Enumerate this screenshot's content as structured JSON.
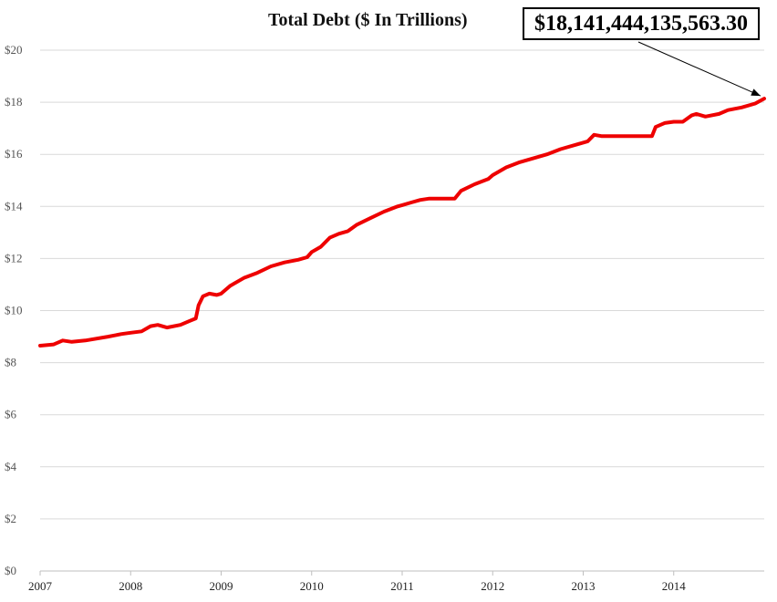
{
  "chart_data": {
    "type": "line",
    "title": "Total Debt ($ In Trillions)",
    "annotation": "$18,141,444,135,563.30",
    "xlabel": "",
    "ylabel": "",
    "xlim": [
      2007,
      2015
    ],
    "ylim": [
      0,
      20
    ],
    "y_ticks": [
      "$0",
      "$2",
      "$4",
      "$6",
      "$8",
      "$10",
      "$12",
      "$14",
      "$16",
      "$18",
      "$20"
    ],
    "y_tick_values": [
      0,
      2,
      4,
      6,
      8,
      10,
      12,
      14,
      16,
      18,
      20
    ],
    "x_ticks": [
      "2007",
      "2008",
      "2009",
      "2010",
      "2011",
      "2012",
      "2013",
      "2014"
    ],
    "x_tick_values": [
      2007,
      2008,
      2009,
      2010,
      2011,
      2012,
      2013,
      2014
    ],
    "grid": true,
    "line_color": "#ee0000",
    "series": [
      {
        "x": [
          2007.0,
          2007.15,
          2007.25,
          2007.35,
          2007.5,
          2007.75,
          2007.9,
          2008.0,
          2008.12,
          2008.22,
          2008.3,
          2008.4,
          2008.55,
          2008.65,
          2008.72,
          2008.75,
          2008.8,
          2008.87,
          2008.95,
          2009.0,
          2009.1,
          2009.25,
          2009.4,
          2009.55,
          2009.7,
          2009.85,
          2009.95,
          2010.0,
          2010.1,
          2010.2,
          2010.3,
          2010.4,
          2010.5,
          2010.65,
          2010.8,
          2010.95,
          2011.0,
          2011.1,
          2011.2,
          2011.3,
          2011.42,
          2011.58,
          2011.65,
          2011.8,
          2011.95,
          2012.0,
          2012.15,
          2012.3,
          2012.5,
          2012.6,
          2012.75,
          2012.95,
          2013.05,
          2013.12,
          2013.2,
          2013.3,
          2013.5,
          2013.65,
          2013.76,
          2013.8,
          2013.9,
          2014.0,
          2014.1,
          2014.2,
          2014.25,
          2014.35,
          2014.5,
          2014.6,
          2014.75,
          2014.9,
          2015.0
        ],
        "y": [
          8.65,
          8.7,
          8.85,
          8.8,
          8.85,
          9.0,
          9.1,
          9.15,
          9.2,
          9.4,
          9.45,
          9.35,
          9.45,
          9.6,
          9.7,
          10.2,
          10.55,
          10.65,
          10.6,
          10.65,
          10.95,
          11.25,
          11.45,
          11.7,
          11.85,
          11.95,
          12.05,
          12.25,
          12.45,
          12.8,
          12.95,
          13.05,
          13.3,
          13.55,
          13.8,
          14.0,
          14.05,
          14.15,
          14.25,
          14.3,
          14.3,
          14.3,
          14.6,
          14.85,
          15.05,
          15.2,
          15.5,
          15.7,
          15.9,
          16.0,
          16.2,
          16.4,
          16.5,
          16.75,
          16.7,
          16.7,
          16.7,
          16.7,
          16.7,
          17.05,
          17.2,
          17.25,
          17.25,
          17.5,
          17.55,
          17.45,
          17.55,
          17.7,
          17.8,
          17.95,
          18.14
        ]
      }
    ]
  }
}
